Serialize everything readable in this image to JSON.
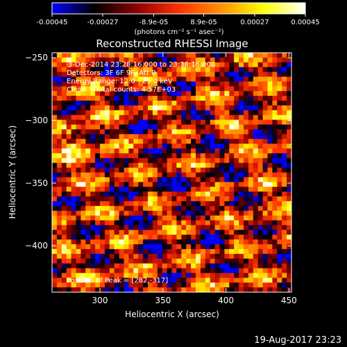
{
  "colorbar": {
    "ticks": [
      "-0.00045",
      "-0.00027",
      "-8.9e-05",
      "8.9e-05",
      "0.00027",
      "0.00045"
    ],
    "tick_values": [
      -0.00045,
      -0.00027,
      -8.9e-05,
      8.9e-05,
      0.00027,
      0.00045
    ],
    "range": [
      -0.00045,
      0.00045
    ],
    "units_label": "(photons cm⁻² s⁻¹ asec⁻²)",
    "colormap": [
      "#0000ff",
      "#000000",
      "#8b0000",
      "#ff3000",
      "#ff9000",
      "#ffff00",
      "#ffffff"
    ]
  },
  "chart_data": {
    "type": "heatmap",
    "title": "Reconstructed RHESSI Image",
    "xlabel": "Heliocentric X (arcsec)",
    "ylabel": "Heliocentric Y (arcsec)",
    "xlim": [
      262,
      452
    ],
    "ylim": [
      -437,
      -246
    ],
    "xticks": [
      300,
      350,
      400,
      450
    ],
    "yticks": [
      -250,
      -300,
      -350,
      -400
    ],
    "xtick_labels": [
      "300",
      "350",
      "400",
      "450"
    ],
    "ytick_labels": [
      "−250",
      "−300",
      "−350",
      "−400"
    ],
    "grid": false,
    "annotations": {
      "time_range": "3-Dec-2014 23:28:16.000 to 23:38:16.000",
      "detectors": "Detectors: 3F 6F 9F, Att 0",
      "energy_range": "Energy Range: 12.0 - 25.0 keV",
      "method_counts": "Clean    Total counts: 4.57E+03",
      "peak": "Position of Peak = [282,-317]"
    },
    "peak_position": [
      282,
      -317
    ]
  },
  "footer": {
    "timestamp": "19-Aug-2017 23:23"
  }
}
